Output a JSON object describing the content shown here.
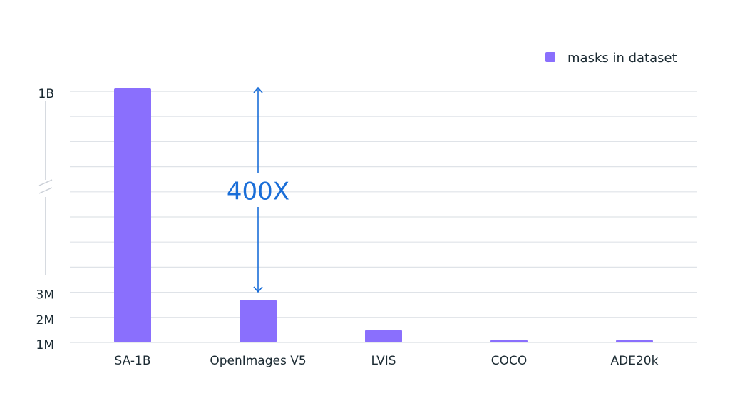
{
  "chart_data": {
    "type": "bar",
    "categories": [
      "SA-1B",
      "OpenImages V5",
      "LVIS",
      "COCO",
      "ADE20k"
    ],
    "series": [
      {
        "name": "masks in dataset",
        "color": "#8a6ffd",
        "values": [
          1100000000,
          2700000,
          1500000,
          1100000,
          1100000
        ]
      }
    ],
    "ylim": [
      1000000,
      1100000000
    ],
    "yticks": [
      {
        "value": 1000000,
        "label": "1M"
      },
      {
        "value": 2000000,
        "label": "2M"
      },
      {
        "value": 3000000,
        "label": "3M"
      },
      {
        "value": 1000000000,
        "label": "1B"
      }
    ],
    "broken_axis": true,
    "annotation": "400X",
    "annotation_color": "#1a6ed8",
    "grid": true,
    "legend": "top-right"
  }
}
